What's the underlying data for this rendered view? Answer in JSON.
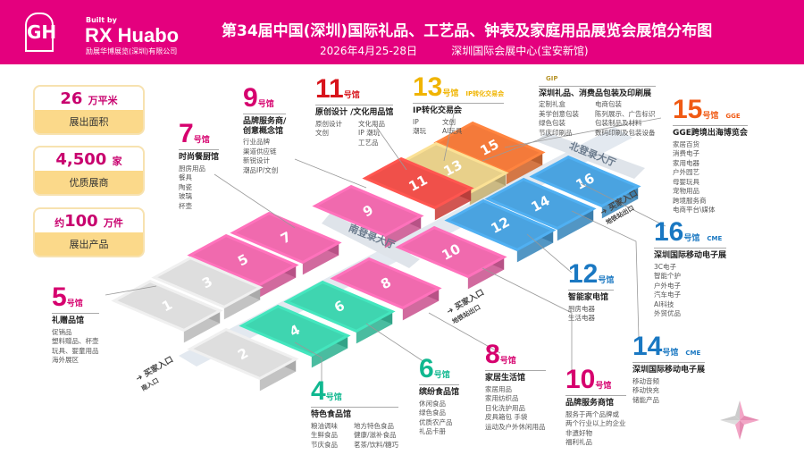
{
  "header": {
    "logo_text": "GH",
    "logo_caption": "GIFTS & HOME",
    "built_by": "Built by",
    "brand": "RX Huabo",
    "brand_sub": "励展华博展览(深圳)有限公司",
    "title": "第34届中国(深圳)国际礼品、工艺品、钟表及家庭用品展览会展馆分布图",
    "date": "2026年4月25-28日",
    "venue": "深圳国际会展中心(宝安新馆)"
  },
  "stats": [
    {
      "value": "26",
      "unit": "万平米",
      "prefix": "",
      "label": "展出面积"
    },
    {
      "value": "4,500",
      "unit": "家",
      "prefix": "",
      "label": "优质展商"
    },
    {
      "value": "100",
      "unit": "万件",
      "prefix": "约",
      "label": "展出产品"
    }
  ],
  "colors": {
    "magenta": "#e4007e",
    "pink": "#f06aae",
    "red": "#f0504a",
    "tan": "#e8d08a",
    "orange": "#f47a3a",
    "blue": "#4aa3e0",
    "teal": "#3fd5b0",
    "gray": "#dedede"
  },
  "hall_suffix": "号馆",
  "halls": [
    {
      "no": "1",
      "color": "#dedede"
    },
    {
      "no": "2",
      "color": "#dedede"
    },
    {
      "no": "3",
      "color": "#dedede"
    },
    {
      "no": "4",
      "color": "#3fd5b0"
    },
    {
      "no": "5",
      "color": "#f06aae"
    },
    {
      "no": "6",
      "color": "#3fd5b0"
    },
    {
      "no": "7",
      "color": "#f06aae"
    },
    {
      "no": "8",
      "color": "#f06aae"
    },
    {
      "no": "9",
      "color": "#f06aae"
    },
    {
      "no": "10",
      "color": "#f06aae"
    },
    {
      "no": "11",
      "color": "#f0504a"
    },
    {
      "no": "12",
      "color": "#4aa3e0"
    },
    {
      "no": "13",
      "color": "#e8d08a"
    },
    {
      "no": "14",
      "color": "#4aa3e0"
    },
    {
      "no": "15",
      "color": "#f47a3a"
    },
    {
      "no": "16",
      "color": "#4aa3e0"
    }
  ],
  "lobbies": {
    "south": "南登录大厅",
    "north": "北登录大厅"
  },
  "entrances": [
    {
      "label": "买家入口",
      "sub": "南入口"
    },
    {
      "label": "买家入口",
      "sub": "地铁站出口"
    },
    {
      "label": "买家入口",
      "sub": "地铁站出口"
    }
  ],
  "labels": [
    {
      "no": "5",
      "color": "#d6006e",
      "title": "礼赠品馆",
      "cols": [
        [
          "促销品",
          "塑料赠品、杯壶",
          "玩具、婴童用品",
          "海外展区"
        ]
      ]
    },
    {
      "no": "7",
      "color": "#d6006e",
      "title": "时尚餐厨馆",
      "cols": [
        [
          "厨房用品",
          "餐具",
          "陶瓷",
          "玻璃",
          "杯壶"
        ]
      ]
    },
    {
      "no": "9",
      "color": "#d6006e",
      "title": "品牌服务商/\n创意概念馆",
      "cols": [
        [
          "行业品牌",
          "渠道供应链",
          "新锐设计",
          "潮品IP/文创"
        ]
      ]
    },
    {
      "no": "11",
      "color": "#d8141b",
      "title": "原创设计 /文化用品馆",
      "cols": [
        [
          "原创设计",
          "文创"
        ],
        [
          "文化用品",
          "IP 潮玩",
          "工艺品"
        ]
      ]
    },
    {
      "no": "13",
      "color": "#f0b400",
      "logo": "IP转化交易会",
      "title": "IP转化交易会",
      "cols": [
        [
          "IP",
          "潮玩"
        ],
        [
          "文创",
          "AI玩具"
        ]
      ]
    },
    {
      "no": "",
      "color": "#b8962e",
      "logo": "GIP",
      "title": "深圳礼品、消费品包装及印刷展",
      "cols": [
        [
          "定制礼盒",
          "美学创意包装",
          "绿色包装",
          "节庆印刷品"
        ],
        [
          "电商包装",
          "陈列展示、广告标识",
          "包装制品及材料",
          "数码印刷及包装设备"
        ]
      ]
    },
    {
      "no": "15",
      "color": "#f05a14",
      "logo": "GGE",
      "title": "GGE跨境出海博览会",
      "cols": [
        [
          "家居百货",
          "消费电子",
          "家用电器",
          "户外园艺",
          "母婴玩具",
          "宠物用品",
          "跨境服务商",
          "电商平台\\媒体"
        ]
      ]
    },
    {
      "no": "16",
      "color": "#1a78c2",
      "logo": "CME",
      "title": "深圳国际移动电子展",
      "cols": [
        [
          "3C电子",
          "智能个护",
          "户外电子",
          "汽车电子",
          "AI科技",
          "外贸优品"
        ]
      ]
    },
    {
      "no": "12",
      "color": "#1a78c2",
      "title": "智能家电馆",
      "cols": [
        [
          "厨房电器",
          "生活电器"
        ]
      ]
    },
    {
      "no": "14",
      "color": "#1a78c2",
      "logo": "CME",
      "title": "深圳国际移动电子展",
      "cols": [
        [
          "移动音频",
          "移动快充",
          "储能产品"
        ]
      ]
    },
    {
      "no": "10",
      "color": "#d6006e",
      "title": "品牌服务商馆",
      "cols": [
        [
          "服务于两个品牌或",
          "两个行业以上的企业",
          "非遗好物",
          "福利礼品"
        ]
      ]
    },
    {
      "no": "8",
      "color": "#d6006e",
      "title": "家居生活馆",
      "cols": [
        [
          "家居用品",
          "家用纺织品",
          "日化洗护用品",
          "皮具箱包 手袋",
          "运动及户外休闲用品"
        ]
      ]
    },
    {
      "no": "6",
      "color": "#10b890",
      "title": "缤纷食品馆",
      "cols": [
        [
          "休闲食品",
          "绿色食品",
          "优质农产品",
          "礼品卡册"
        ]
      ]
    },
    {
      "no": "4",
      "color": "#10b890",
      "title": "特色食品馆",
      "cols": [
        [
          "粮油调味",
          "生鲜食品",
          "节庆食品"
        ],
        [
          "地方特色食品",
          "健康/滋补食品",
          "茗茶/饮料/糖巧"
        ]
      ]
    }
  ]
}
